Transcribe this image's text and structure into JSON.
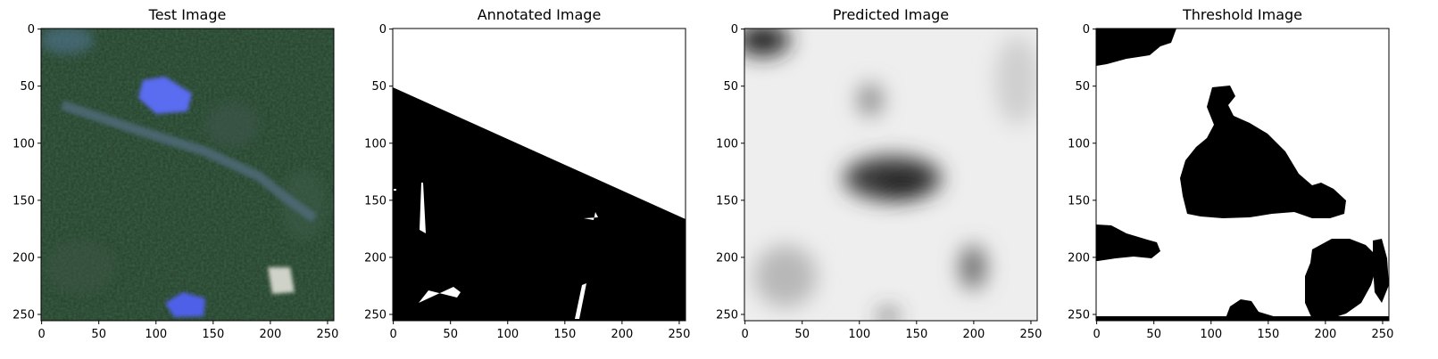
{
  "chart_data": [
    {
      "type": "image",
      "title": "Test Image",
      "image_size": [
        256,
        256
      ],
      "xticks": [
        0,
        50,
        100,
        150,
        200,
        250
      ],
      "yticks": [
        0,
        50,
        100,
        150,
        200,
        250
      ],
      "content": "satellite-rgb",
      "colors": {
        "vegetation": "#2c4632",
        "road": "#4f6a78",
        "roof": "#5060e8"
      }
    },
    {
      "type": "image",
      "title": "Annotated Image",
      "image_size": [
        256,
        256
      ],
      "xticks": [
        0,
        50,
        100,
        150,
        200,
        250
      ],
      "yticks": [
        0,
        50,
        100,
        150,
        200,
        250
      ],
      "content": "binary-mask",
      "mask_boundary": [
        [
          0,
          52
        ],
        [
          256,
          168
        ]
      ],
      "colors": {
        "foreground": "#ffffff",
        "background": "#000000"
      }
    },
    {
      "type": "image",
      "title": "Predicted Image",
      "image_size": [
        256,
        256
      ],
      "xticks": [
        0,
        50,
        100,
        150,
        200,
        250
      ],
      "yticks": [
        0,
        50,
        100,
        150,
        200,
        250
      ],
      "content": "grayscale-probability",
      "colors": {
        "high": "#f2f2f2",
        "low": "#202020"
      }
    },
    {
      "type": "image",
      "title": "Threshold Image",
      "image_size": [
        256,
        256
      ],
      "xticks": [
        0,
        50,
        100,
        150,
        200,
        250
      ],
      "yticks": [
        0,
        50,
        100,
        150,
        200,
        250
      ],
      "content": "binary-threshold",
      "colors": {
        "foreground": "#ffffff",
        "background": "#000000"
      }
    }
  ]
}
